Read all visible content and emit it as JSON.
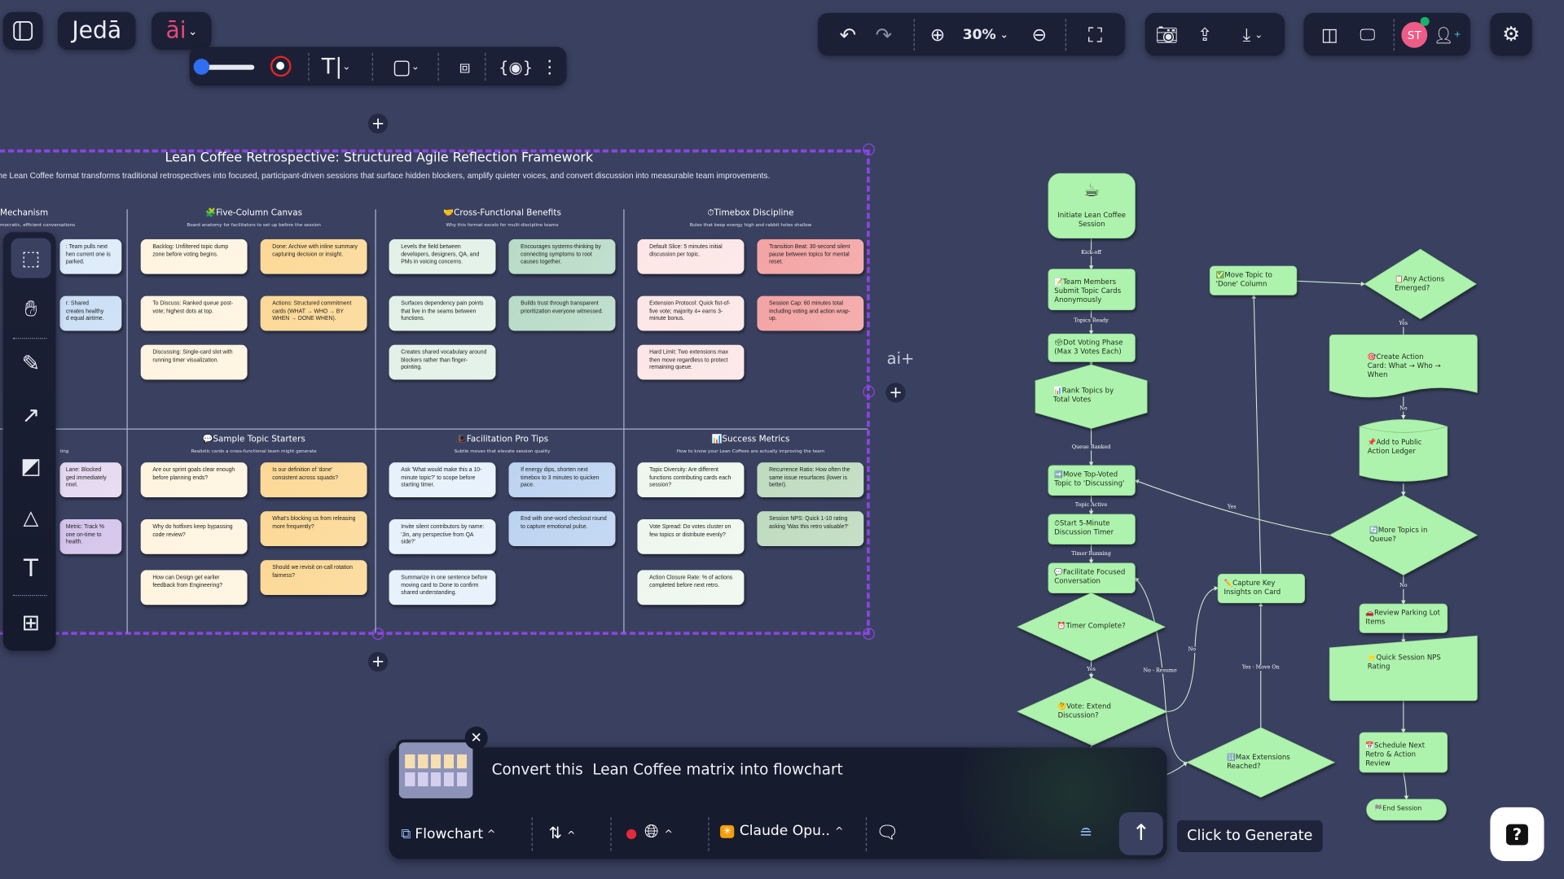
{
  "app": {
    "logo_text": "Jedā",
    "ai_menu": "āi",
    "zoom_level": "30%",
    "avatar_initials": "ST",
    "ai_plus": "ai+"
  },
  "colors": {
    "background": "#3a4160",
    "toolbar": "#1b2036",
    "frame_border": "#8b45e0",
    "brand_pink": "#e8487a",
    "node_fill": "#aef3ad",
    "color_dot": "#2f6ef0",
    "record_ring": "#e02424"
  },
  "toolbar_top": {
    "icons": [
      "sidebar-toggle-icon",
      "stroke-slider",
      "record-icon",
      "text-tool-icon",
      "shape-icon",
      "frame-select-icon",
      "visibility-icon",
      "more-icon"
    ]
  },
  "toolbar_right": {
    "icons": [
      "undo-icon",
      "redo-icon",
      "zoom-in-icon",
      "zoom-out-icon",
      "fullscreen-icon",
      "camera-icon",
      "upload-icon",
      "download-icon",
      "layout-icon",
      "present-icon",
      "add-user-icon",
      "settings-icon"
    ]
  },
  "left_tools": [
    "select-tool",
    "hand-tool",
    "pen-tool",
    "arrow-tool",
    "image-tool",
    "shapes-tool",
    "text-tool",
    "apps-tool"
  ],
  "board": {
    "title": "Lean Coffee Retrospective: Structured Agile Reflection Framework",
    "subtitle": "he Lean Coffee format transforms traditional retrospectives into focused, participant-driven sessions that surface hidden blockers, amplify quieter voices, and convert discussion into measurable team improvements.",
    "sections": [
      {
        "title": "Mechanism",
        "sub": "mocratic, efficient conversations",
        "cards": [
          ": Team pulls next\nhen current one is\nparked.",
          "r: Shared\ncreates healthy\nd equal airtime."
        ]
      },
      {
        "title": "🧩Five-Column Canvas",
        "sub": "Board anatomy for facilitators to set up before the session",
        "cards": [
          "Backlog: Unfiltered topic dump zone before voting begins.",
          "Done: Archive with inline summary capturing decision or insight.",
          "To Discuss: Ranked queue post-vote; highest dots at top.",
          "Actions: Structured commitment cards (WHAT → WHO → BY WHEN → DONE WHEN).",
          "Discussing: Single-card slot with running timer visualization."
        ]
      },
      {
        "title": "🤝Cross-Functional Benefits",
        "sub": "Why this format excels for multi-discipline teams",
        "cards": [
          "Levels the field between developers, designers, QA, and PMs in voicing concerns.",
          "Encourages systems-thinking by connecting symptoms to root causes together.",
          "Surfaces dependency pain points that live in the seams between functions.",
          "Builds trust through transparent prioritization everyone witnessed.",
          "Creates shared vocabulary around blockers rather than finger-pointing."
        ]
      },
      {
        "title": "⏱Timebox Discipline",
        "sub": "Rules that keep energy high and rabbit holes shallow",
        "cards": [
          "Default Slice: 5 minutes initial discussion per topic.",
          "Transition Beat: 30-second silent pause between topics for mental reset.",
          "Extension Protocol: Quick fist-of-five vote; majority 4+ earns 3-minute bonus.",
          "Session Cap: 60 minutes total including voting and action wrap-up.",
          "Hard Limit: Two extensions max then move regardless to protect remaining queue."
        ]
      },
      {
        "title": "",
        "sub": "ting",
        "cards": [
          "Lane: Blocked\nged immediately\nnnel.",
          "Metric: Track %\none on-time to\n health."
        ]
      },
      {
        "title": "💬Sample Topic Starters",
        "sub": "Realistic cards a cross-functional team might generate",
        "cards": [
          "Are our sprint goals clear enough before planning ends?",
          "Is our definition of 'done' consistent across squads?",
          "Why do hotfixes keep bypassing code review?",
          "What's blocking us from releasing more frequently?",
          "How can Design get earlier feedback from Engineering?",
          "Should we revisit on-call rotation fairness?"
        ]
      },
      {
        "title": "🎩Facilitation Pro Tips",
        "sub": "Subtle moves that elevate session quality",
        "cards": [
          "Ask 'What would make this a 10-minute topic?' to scope before starting timer.",
          "If energy dips, shorten next timebox to 3 minutes to quicken pace.",
          "Invite silent contributors by name: 'Jin, any perspective from QA side?'",
          "End with one-word checkout round to capture emotional pulse.",
          "Summarize in one sentence before moving card to Done to confirm shared understanding."
        ]
      },
      {
        "title": "📊Success Metrics",
        "sub": "How to know your Lean Coffees are actually improving the team",
        "cards": [
          "Topic Diversity: Are different functions contributing cards each session?",
          "Recurrence Ratio: How often the same issue resurfaces (lower is better).",
          "Vote Spread: Do votes cluster on few topics or distribute evenly?",
          "Session NPS: Quick 1-10 rating asking 'Was this retro valuable?'",
          "Action Closure Rate: % of actions completed before next retro."
        ]
      }
    ]
  },
  "flowchart": {
    "nodes": [
      {
        "id": "init",
        "shape": "rounded",
        "text": "Initiate Lean Coffee\nSession",
        "icon": "☕"
      },
      {
        "id": "team",
        "shape": "rect",
        "text": "📝Team Members\nSubmit Topic Cards\nAnonymously"
      },
      {
        "id": "dot",
        "shape": "rect",
        "text": "🗳Dot Voting Phase\n(Max 3 Votes Each)"
      },
      {
        "id": "rank",
        "shape": "hexagon",
        "text": "📊Rank Topics by\nTotal Votes"
      },
      {
        "id": "movetop",
        "shape": "rect",
        "text": "➡️Move Top-Voted\nTopic to 'Discussing'"
      },
      {
        "id": "start",
        "shape": "rect",
        "text": "⏱Start 5-Minute\nDiscussion Timer"
      },
      {
        "id": "facil",
        "shape": "rect",
        "text": "💬Facilitate Focused\nConversation"
      },
      {
        "id": "timer",
        "shape": "diamond",
        "text": "⏰Timer Complete?"
      },
      {
        "id": "vote",
        "shape": "diamond",
        "text": "🤔Vote: Extend\nDiscussion?"
      },
      {
        "id": "done",
        "shape": "rect",
        "text": "✅Move Topic to\n'Done' Column"
      },
      {
        "id": "any",
        "shape": "diamond",
        "text": "📋Any Actions\nEmerged?"
      },
      {
        "id": "create",
        "shape": "document",
        "text": "🎯Create Action\nCard: What → Who →\nWhen"
      },
      {
        "id": "ledger",
        "shape": "cylinder",
        "text": "📌Add to Public\nAction Ledger"
      },
      {
        "id": "more",
        "shape": "diamond",
        "text": "🔄More Topics in\nQueue?"
      },
      {
        "id": "parking",
        "shape": "rect",
        "text": "🚗Review Parking Lot\nItems"
      },
      {
        "id": "nps",
        "shape": "manual",
        "text": "⭐Quick Session NPS\nRating"
      },
      {
        "id": "schedule",
        "shape": "rect",
        "text": "📅Schedule Next\nRetro & Action\nReview"
      },
      {
        "id": "end",
        "shape": "stadium",
        "text": "🏁End Session"
      },
      {
        "id": "capture",
        "shape": "rect",
        "text": "✏️Capture Key\nInsights on Card"
      },
      {
        "id": "maxext",
        "shape": "diamond",
        "text": "🔢Max Extensions\nReached?"
      }
    ],
    "edges": [
      {
        "from": "init",
        "to": "team",
        "label": "Kick-off"
      },
      {
        "from": "team",
        "to": "dot",
        "label": "Topics Ready"
      },
      {
        "from": "dot",
        "to": "rank",
        "label": ""
      },
      {
        "from": "rank",
        "to": "movetop",
        "label": "Queue Ranked"
      },
      {
        "from": "movetop",
        "to": "start",
        "label": "Topic Active"
      },
      {
        "from": "start",
        "to": "facil",
        "label": "Timer Running"
      },
      {
        "from": "facil",
        "to": "timer",
        "label": ""
      },
      {
        "from": "timer",
        "to": "vote",
        "label": "Yes"
      },
      {
        "from": "vote",
        "to": "capture",
        "label": "No"
      },
      {
        "from": "maxext",
        "to": "facil",
        "label": "No - Resume"
      },
      {
        "from": "vote",
        "to": "maxext",
        "label": ""
      },
      {
        "from": "maxext",
        "to": "capture",
        "label": "Yes - Move On"
      },
      {
        "from": "capture",
        "to": "done",
        "label": ""
      },
      {
        "from": "done",
        "to": "any",
        "label": ""
      },
      {
        "from": "any",
        "to": "create",
        "label": "Yes"
      },
      {
        "from": "create",
        "to": "ledger",
        "label": "No"
      },
      {
        "from": "ledger",
        "to": "more",
        "label": ""
      },
      {
        "from": "more",
        "to": "movetop",
        "label": "Yes"
      },
      {
        "from": "more",
        "to": "parking",
        "label": "No"
      },
      {
        "from": "parking",
        "to": "nps",
        "label": ""
      },
      {
        "from": "nps",
        "to": "schedule",
        "label": ""
      },
      {
        "from": "schedule",
        "to": "end",
        "label": ""
      }
    ]
  },
  "prompt": {
    "text": "Convert this  Lean Coffee matrix into flowchart",
    "diagram_type": "Flowchart",
    "model": "Claude Opu..",
    "tooltip": "Click to Generate",
    "help": "?"
  }
}
